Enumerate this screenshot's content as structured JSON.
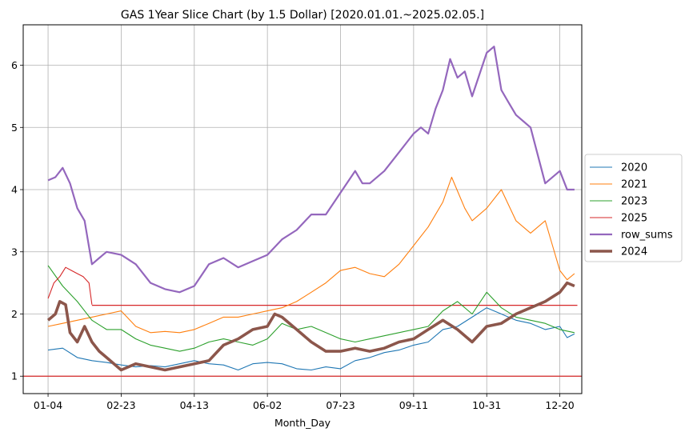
{
  "chart_data": {
    "type": "line",
    "title": "GAS 1Year Slice Chart (by 1.5 Dollar) [2020.01.01.~2025.02.05.]",
    "xlabel": "Month_Day",
    "ylabel": "",
    "xticks": [
      "01-04",
      "02-23",
      "04-13",
      "06-02",
      "07-23",
      "09-11",
      "10-31",
      "12-20"
    ],
    "xtick_index": [
      0,
      50,
      100,
      150,
      200,
      250,
      300,
      350
    ],
    "xlim": [
      -17,
      365
    ],
    "ylim": [
      0.72,
      6.65
    ],
    "yticks": [
      1,
      2,
      3,
      4,
      5,
      6
    ],
    "grid": true,
    "legend_position": "outside-right",
    "hlines": [
      {
        "y": 1.0,
        "color": "#d62728"
      },
      {
        "y": 2.14,
        "color": "#d62728",
        "xmin": 30,
        "xmax": 362
      }
    ],
    "series": [
      {
        "name": "2020",
        "color": "#1f77b4",
        "width": 1.1,
        "x": [
          0,
          10,
          20,
          30,
          40,
          50,
          60,
          70,
          80,
          90,
          100,
          110,
          120,
          130,
          140,
          150,
          160,
          170,
          180,
          190,
          200,
          210,
          220,
          230,
          240,
          250,
          260,
          270,
          280,
          290,
          300,
          310,
          320,
          330,
          340,
          350,
          355,
          360
        ],
        "y": [
          1.42,
          1.45,
          1.3,
          1.25,
          1.22,
          1.18,
          1.15,
          1.17,
          1.15,
          1.2,
          1.25,
          1.2,
          1.18,
          1.1,
          1.2,
          1.22,
          1.2,
          1.12,
          1.1,
          1.15,
          1.12,
          1.25,
          1.3,
          1.38,
          1.42,
          1.5,
          1.55,
          1.75,
          1.8,
          1.95,
          2.1,
          2.0,
          1.9,
          1.85,
          1.75,
          1.8,
          1.62,
          1.68
        ]
      },
      {
        "name": "2021",
        "color": "#ff7f0e",
        "width": 1.1,
        "x": [
          0,
          10,
          20,
          30,
          40,
          50,
          60,
          70,
          80,
          90,
          100,
          110,
          120,
          130,
          140,
          150,
          160,
          170,
          180,
          190,
          200,
          210,
          220,
          230,
          240,
          250,
          260,
          270,
          276,
          285,
          290,
          300,
          310,
          320,
          330,
          340,
          350,
          355,
          360
        ],
        "y": [
          1.8,
          1.85,
          1.9,
          1.95,
          2.0,
          2.05,
          1.8,
          1.7,
          1.72,
          1.7,
          1.75,
          1.85,
          1.95,
          1.95,
          2.0,
          2.05,
          2.1,
          2.2,
          2.35,
          2.5,
          2.7,
          2.75,
          2.65,
          2.6,
          2.8,
          3.1,
          3.4,
          3.8,
          4.2,
          3.7,
          3.5,
          3.7,
          4.0,
          3.5,
          3.3,
          3.5,
          2.7,
          2.55,
          2.65
        ]
      },
      {
        "name": "2023",
        "color": "#2ca02c",
        "width": 1.1,
        "x": [
          0,
          10,
          20,
          30,
          40,
          50,
          60,
          70,
          80,
          90,
          100,
          110,
          120,
          130,
          140,
          150,
          160,
          170,
          180,
          190,
          200,
          210,
          220,
          230,
          240,
          250,
          260,
          270,
          280,
          290,
          300,
          310,
          320,
          330,
          340,
          350,
          360
        ],
        "y": [
          2.78,
          2.45,
          2.2,
          1.9,
          1.75,
          1.75,
          1.6,
          1.5,
          1.45,
          1.4,
          1.45,
          1.55,
          1.6,
          1.55,
          1.5,
          1.6,
          1.85,
          1.75,
          1.8,
          1.7,
          1.6,
          1.55,
          1.6,
          1.65,
          1.7,
          1.75,
          1.8,
          2.05,
          2.2,
          2.0,
          2.35,
          2.1,
          1.95,
          1.9,
          1.85,
          1.75,
          1.7
        ]
      },
      {
        "name": "2025",
        "color": "#d62728",
        "width": 1.1,
        "x": [
          0,
          4,
          8,
          12,
          16,
          20,
          24,
          28,
          30
        ],
        "y": [
          2.25,
          2.5,
          2.6,
          2.75,
          2.7,
          2.65,
          2.6,
          2.5,
          2.15
        ]
      },
      {
        "name": "row_sums",
        "color": "#9467bd",
        "width": 2.2,
        "x": [
          0,
          5,
          10,
          15,
          20,
          25,
          30,
          35,
          40,
          50,
          60,
          70,
          80,
          90,
          100,
          110,
          120,
          130,
          140,
          150,
          160,
          170,
          180,
          190,
          200,
          210,
          215,
          220,
          230,
          240,
          250,
          255,
          260,
          265,
          270,
          275,
          280,
          285,
          290,
          300,
          305,
          310,
          315,
          320,
          325,
          330,
          340,
          350,
          355,
          360
        ],
        "y": [
          4.15,
          4.2,
          4.35,
          4.1,
          3.7,
          3.5,
          2.8,
          2.9,
          3.0,
          2.95,
          2.8,
          2.5,
          2.4,
          2.35,
          2.45,
          2.8,
          2.9,
          2.75,
          2.85,
          2.95,
          3.2,
          3.35,
          3.6,
          3.6,
          3.95,
          4.3,
          4.1,
          4.1,
          4.3,
          4.6,
          4.9,
          5.0,
          4.9,
          5.3,
          5.6,
          6.1,
          5.8,
          5.9,
          5.5,
          6.2,
          6.3,
          5.6,
          5.4,
          5.2,
          5.1,
          5.0,
          4.1,
          4.3,
          4.0,
          4.0
        ]
      },
      {
        "name": "2024",
        "color": "#8c564b",
        "width": 3.6,
        "x": [
          0,
          5,
          8,
          12,
          15,
          20,
          25,
          30,
          35,
          40,
          50,
          60,
          70,
          80,
          90,
          100,
          110,
          120,
          130,
          140,
          150,
          155,
          160,
          170,
          180,
          190,
          200,
          210,
          220,
          230,
          240,
          250,
          260,
          270,
          280,
          290,
          300,
          310,
          320,
          330,
          340,
          350,
          355,
          360
        ],
        "y": [
          1.9,
          2.0,
          2.2,
          2.15,
          1.7,
          1.55,
          1.8,
          1.55,
          1.4,
          1.3,
          1.1,
          1.2,
          1.15,
          1.1,
          1.15,
          1.2,
          1.25,
          1.5,
          1.6,
          1.75,
          1.8,
          2.0,
          1.95,
          1.75,
          1.55,
          1.4,
          1.4,
          1.45,
          1.4,
          1.45,
          1.55,
          1.6,
          1.75,
          1.9,
          1.75,
          1.55,
          1.8,
          1.85,
          2.0,
          2.1,
          2.2,
          2.35,
          2.5,
          2.45
        ]
      }
    ]
  }
}
